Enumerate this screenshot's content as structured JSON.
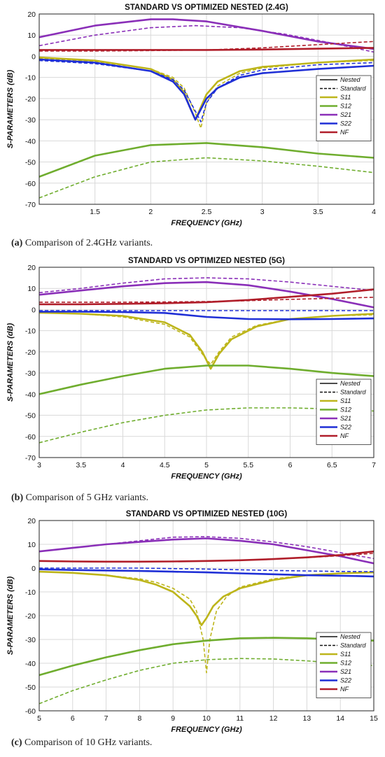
{
  "captions": [
    {
      "letter": "(a)",
      "text": " Comparison of 2.4GHz variants."
    },
    {
      "letter": "(b)",
      "text": " Comparison of 5 GHz variants."
    },
    {
      "letter": "(c)",
      "text": " Comparison of 10 GHz variants."
    }
  ],
  "colors": {
    "S11": "#bdb51a",
    "S12": "#6fad2e",
    "S21": "#8a2fb8",
    "S22": "#1f2fd6",
    "NF": "#b01e2a"
  },
  "chart_data": [
    {
      "type": "line",
      "title": "STANDARD VS OPTIMIZED NESTED (2.4G)",
      "xlabel": "FREQUENCY (GHz)",
      "ylabel": "S-PARAMETERS (dB)",
      "xlim": [
        1,
        4
      ],
      "ylim": [
        -70,
        20
      ],
      "xticks": [
        1.5,
        2,
        2.5,
        3,
        3.5,
        4
      ],
      "yticks": [
        -70,
        -60,
        -50,
        -40,
        -30,
        -20,
        -10,
        0,
        10,
        20
      ],
      "grid": true,
      "legend_position": "right",
      "legend": [
        "Nested",
        "Standard",
        "S11",
        "S12",
        "S21",
        "S22",
        "NF"
      ],
      "series": [
        {
          "name": "S11",
          "style": "nested",
          "x": [
            1,
            1.5,
            2,
            2.2,
            2.3,
            2.35,
            2.4,
            2.45,
            2.5,
            2.6,
            2.8,
            3.0,
            3.5,
            4.0
          ],
          "y": [
            -0.5,
            -2,
            -6,
            -11,
            -17,
            -24,
            -30,
            -24,
            -18,
            -12,
            -7,
            -5,
            -3,
            -1.5
          ]
        },
        {
          "name": "S11",
          "style": "standard",
          "x": [
            1,
            1.5,
            2,
            2.2,
            2.3,
            2.4,
            2.45,
            2.5,
            2.6,
            2.8,
            3.0,
            3.5,
            4.0
          ],
          "y": [
            -1,
            -2.5,
            -6,
            -10,
            -15,
            -27,
            -34,
            -22,
            -14,
            -8,
            -5.5,
            -3,
            -2
          ]
        },
        {
          "name": "S12",
          "style": "nested",
          "x": [
            1,
            1.5,
            2,
            2.5,
            3,
            3.5,
            4
          ],
          "y": [
            -57,
            -47,
            -42,
            -41,
            -43,
            -46,
            -48
          ]
        },
        {
          "name": "S12",
          "style": "standard",
          "x": [
            1,
            1.5,
            2,
            2.5,
            3,
            3.5,
            4
          ],
          "y": [
            -67,
            -57,
            -50,
            -48,
            -49.5,
            -52,
            -55
          ]
        },
        {
          "name": "S21",
          "style": "nested",
          "x": [
            1,
            1.5,
            2,
            2.2,
            2.5,
            3,
            3.5,
            4
          ],
          "y": [
            9,
            14.5,
            17.5,
            17.5,
            16.5,
            12,
            7,
            3.5
          ]
        },
        {
          "name": "S21",
          "style": "standard",
          "x": [
            1,
            1.5,
            2,
            2.4,
            2.8,
            3.2,
            3.6,
            4
          ],
          "y": [
            5,
            10,
            13.5,
            14.5,
            13.5,
            10.5,
            6.5,
            2
          ]
        },
        {
          "name": "S22",
          "style": "nested",
          "x": [
            1,
            1.5,
            2,
            2.2,
            2.3,
            2.35,
            2.4,
            2.45,
            2.5,
            2.6,
            2.8,
            3.0,
            3.5,
            4.0
          ],
          "y": [
            -1.5,
            -3,
            -7,
            -12,
            -18,
            -24,
            -30,
            -25,
            -20,
            -15,
            -10,
            -8,
            -6,
            -4.5
          ]
        },
        {
          "name": "S22",
          "style": "standard",
          "x": [
            1,
            1.5,
            2,
            2.2,
            2.3,
            2.4,
            2.45,
            2.5,
            2.6,
            2.8,
            3.0,
            3.5,
            4.0
          ],
          "y": [
            -2,
            -3.5,
            -7,
            -11,
            -16,
            -26,
            -31,
            -22,
            -15,
            -9,
            -6.5,
            -4,
            -3
          ]
        },
        {
          "name": "NF",
          "style": "nested",
          "x": [
            1,
            1.5,
            2,
            2.5,
            3,
            3.5,
            4
          ],
          "y": [
            3,
            3,
            3,
            3,
            3.2,
            3.6,
            4
          ]
        },
        {
          "name": "NF",
          "style": "standard",
          "x": [
            1,
            1.5,
            2,
            2.5,
            3,
            3.5,
            4
          ],
          "y": [
            2.5,
            2.5,
            2.7,
            3,
            4,
            5.5,
            7
          ]
        }
      ]
    },
    {
      "type": "line",
      "title": "STANDARD VS OPTIMIZED NESTED (5G)",
      "xlabel": "FREQUENCY (GHz)",
      "ylabel": "S-PARAMETERS (dB)",
      "xlim": [
        3,
        7
      ],
      "ylim": [
        -70,
        20
      ],
      "xticks": [
        3,
        3.5,
        4,
        4.5,
        5,
        5.5,
        6,
        6.5,
        7
      ],
      "yticks": [
        -70,
        -60,
        -50,
        -40,
        -30,
        -20,
        -10,
        0,
        10,
        20
      ],
      "grid": true,
      "legend_position": "right",
      "legend": [
        "Nested",
        "Standard",
        "S11",
        "S12",
        "S21",
        "S22",
        "NF"
      ],
      "series": [
        {
          "name": "S11",
          "style": "nested",
          "x": [
            3,
            3.5,
            4,
            4.5,
            4.8,
            4.95,
            5.05,
            5.15,
            5.3,
            5.6,
            6,
            6.5,
            7
          ],
          "y": [
            -1.5,
            -2,
            -3,
            -6,
            -12,
            -20,
            -28,
            -21,
            -14,
            -8,
            -4.5,
            -3,
            -2
          ]
        },
        {
          "name": "S11",
          "style": "standard",
          "x": [
            3,
            3.5,
            4,
            4.5,
            4.8,
            4.95,
            5.05,
            5.15,
            5.3,
            5.6,
            6,
            6.5,
            7
          ],
          "y": [
            -1.5,
            -2,
            -3.5,
            -7,
            -13,
            -21,
            -26,
            -20,
            -13,
            -7.5,
            -4.5,
            -3,
            -2.5
          ]
        },
        {
          "name": "S12",
          "style": "nested",
          "x": [
            3,
            3.5,
            4,
            4.5,
            5,
            5.5,
            6,
            6.5,
            7
          ],
          "y": [
            -40,
            -35.5,
            -31.5,
            -28,
            -26.5,
            -26.5,
            -28,
            -30,
            -31.5
          ]
        },
        {
          "name": "S12",
          "style": "standard",
          "x": [
            3,
            3.5,
            4,
            4.5,
            5,
            5.5,
            6,
            6.5,
            7
          ],
          "y": [
            -63,
            -58,
            -53.5,
            -50,
            -47.5,
            -46.5,
            -46.5,
            -47,
            -48
          ]
        },
        {
          "name": "S21",
          "style": "nested",
          "x": [
            3,
            3.5,
            4,
            4.5,
            5,
            5.5,
            6,
            6.5,
            7
          ],
          "y": [
            7,
            9,
            11,
            12.5,
            13,
            11.5,
            8.5,
            5,
            1
          ]
        },
        {
          "name": "S21",
          "style": "standard",
          "x": [
            3,
            3.5,
            4,
            4.5,
            5,
            5.5,
            6,
            6.5,
            7
          ],
          "y": [
            8,
            10,
            12.5,
            14.5,
            15,
            14.5,
            13,
            11,
            9
          ]
        },
        {
          "name": "S22",
          "style": "nested",
          "x": [
            3,
            3.5,
            4,
            4.5,
            5,
            5.5,
            6,
            6.5,
            7
          ],
          "y": [
            -1,
            -1,
            -1.2,
            -1.6,
            -3.5,
            -4.5,
            -4.6,
            -4.5,
            -4.2
          ]
        },
        {
          "name": "S22",
          "style": "standard",
          "x": [
            3,
            3.5,
            4,
            4.5,
            5,
            5.5,
            6,
            6.5,
            7
          ],
          "y": [
            -0.5,
            -0.5,
            -0.5,
            -0.5,
            -0.5,
            -0.5,
            -0.5,
            -0.5,
            -0.5
          ]
        },
        {
          "name": "NF",
          "style": "nested",
          "x": [
            3,
            3.5,
            4,
            4.5,
            5,
            5.5,
            6,
            6.5,
            7
          ],
          "y": [
            2.5,
            2.5,
            2.7,
            3,
            3.5,
            4.5,
            6,
            7.5,
            9.5
          ]
        },
        {
          "name": "NF",
          "style": "standard",
          "x": [
            3,
            3.5,
            4,
            4.5,
            5,
            5.5,
            6,
            6.5,
            7
          ],
          "y": [
            3.5,
            3.5,
            3.5,
            3.6,
            3.8,
            4.2,
            4.8,
            5.3,
            5.8
          ]
        }
      ]
    },
    {
      "type": "line",
      "title": "STANDARD VS OPTIMIZED NESTED (10G)",
      "xlabel": "FREQUENCY (GHz)",
      "ylabel": "S-PARAMETERS (dB)",
      "xlim": [
        5,
        15
      ],
      "ylim": [
        -60,
        20
      ],
      "xticks": [
        5,
        6,
        7,
        8,
        9,
        10,
        11,
        12,
        13,
        14,
        15
      ],
      "yticks": [
        -60,
        -50,
        -40,
        -30,
        -20,
        -10,
        0,
        10,
        20
      ],
      "grid": true,
      "legend_position": "right",
      "legend": [
        "Nested",
        "Standard",
        "S11",
        "S12",
        "S21",
        "S22",
        "NF"
      ],
      "series": [
        {
          "name": "S11",
          "style": "nested",
          "x": [
            5,
            6,
            7,
            8,
            8.5,
            9,
            9.5,
            9.7,
            9.85,
            10,
            10.2,
            10.5,
            11,
            12,
            13,
            14,
            15
          ],
          "y": [
            -1.5,
            -2,
            -3,
            -5,
            -7,
            -10,
            -16,
            -20,
            -24,
            -21,
            -16,
            -12,
            -8.5,
            -5,
            -3,
            -2.2,
            -1.8
          ]
        },
        {
          "name": "S11",
          "style": "standard",
          "x": [
            5,
            6,
            7,
            8,
            8.5,
            9,
            9.5,
            9.7,
            9.9,
            10,
            10.1,
            10.3,
            10.6,
            11,
            12,
            13,
            14,
            15
          ],
          "y": [
            -1.5,
            -2,
            -3,
            -4.5,
            -6,
            -8.5,
            -13,
            -18,
            -30,
            -44,
            -30,
            -18,
            -12,
            -8,
            -4.5,
            -3,
            -2.2,
            -1.8
          ]
        },
        {
          "name": "S12",
          "style": "nested",
          "x": [
            5,
            6,
            7,
            8,
            9,
            10,
            11,
            12,
            13,
            14,
            15
          ],
          "y": [
            -45,
            -41,
            -37.5,
            -34.5,
            -32,
            -30.5,
            -29.5,
            -29.3,
            -29.5,
            -30,
            -30.5
          ]
        },
        {
          "name": "S12",
          "style": "standard",
          "x": [
            5,
            6,
            7,
            8,
            9,
            10,
            11,
            12,
            13,
            14,
            15
          ],
          "y": [
            -57,
            -51.5,
            -47,
            -43,
            -40,
            -38.5,
            -38,
            -38.2,
            -39,
            -40,
            -41
          ]
        },
        {
          "name": "S21",
          "style": "nested",
          "x": [
            5,
            6,
            7,
            8,
            9,
            10,
            11,
            12,
            13,
            14,
            15
          ],
          "y": [
            7,
            8.5,
            10,
            11,
            12,
            12.5,
            11.5,
            10,
            7.5,
            5,
            2
          ]
        },
        {
          "name": "S21",
          "style": "standard",
          "x": [
            5,
            6,
            7,
            8,
            9,
            10,
            11,
            12,
            13,
            14,
            15
          ],
          "y": [
            7,
            8.5,
            10,
            11.5,
            13,
            13.2,
            12.5,
            11,
            9,
            6.5,
            4
          ]
        },
        {
          "name": "S22",
          "style": "nested",
          "x": [
            5,
            6,
            7,
            8,
            9,
            10,
            11,
            12,
            13,
            14,
            15
          ],
          "y": [
            -0.5,
            -0.8,
            -1,
            -1.2,
            -1.5,
            -1.8,
            -2.2,
            -2.6,
            -3,
            -3.2,
            -3.5
          ]
        },
        {
          "name": "S22",
          "style": "standard",
          "x": [
            5,
            6,
            7,
            8,
            9,
            10,
            11,
            12,
            13,
            14,
            15
          ],
          "y": [
            0,
            0,
            0,
            0,
            -0.2,
            -0.4,
            -0.7,
            -1,
            -1.2,
            -1.4,
            -1.5
          ]
        },
        {
          "name": "NF",
          "style": "nested",
          "x": [
            5,
            6,
            7,
            8,
            9,
            10,
            11,
            12,
            13,
            14,
            15
          ],
          "y": [
            3,
            2.8,
            2.7,
            2.7,
            2.8,
            3,
            3.3,
            3.8,
            4.5,
            5.5,
            7
          ]
        },
        {
          "name": "NF",
          "style": "standard",
          "x": [
            5,
            6,
            7,
            8,
            9,
            10,
            11,
            12,
            13,
            14,
            15
          ],
          "y": [
            3,
            2.8,
            2.7,
            2.7,
            2.8,
            3,
            3.3,
            3.8,
            4.4,
            5.2,
            6.2
          ]
        }
      ]
    }
  ]
}
